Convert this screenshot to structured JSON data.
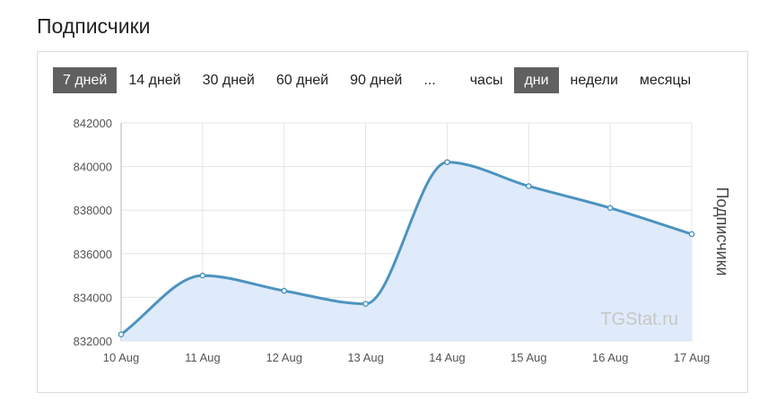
{
  "page_title": "Подписчики",
  "range_buttons": [
    {
      "label": "7 дней",
      "active": true
    },
    {
      "label": "14 дней",
      "active": false
    },
    {
      "label": "30 дней",
      "active": false
    },
    {
      "label": "60 дней",
      "active": false
    },
    {
      "label": "90 дней",
      "active": false
    },
    {
      "label": "...",
      "active": false
    }
  ],
  "granularity_buttons": [
    {
      "label": "часы",
      "active": false
    },
    {
      "label": "дни",
      "active": true
    },
    {
      "label": "недели",
      "active": false
    },
    {
      "label": "месяцы",
      "active": false
    }
  ],
  "watermark": "TGStat.ru",
  "colors": {
    "line": "#4d93bf",
    "fill": "#dbe9fa",
    "grid": "#e4e4e4",
    "active_button": "#606060"
  },
  "chart_data": {
    "type": "area",
    "title": "",
    "xlabel": "",
    "ylabel": "Подписчики",
    "categories": [
      "10 Aug",
      "11 Aug",
      "12 Aug",
      "13 Aug",
      "14 Aug",
      "15 Aug",
      "16 Aug",
      "17 Aug"
    ],
    "values": [
      832300,
      835000,
      834300,
      833700,
      840200,
      839100,
      838100,
      836900
    ],
    "ylim": [
      832000,
      842000
    ],
    "yticks": [
      "842000",
      "840000",
      "838000",
      "836000",
      "834000",
      "832000"
    ],
    "grid": true,
    "legend": "none"
  }
}
